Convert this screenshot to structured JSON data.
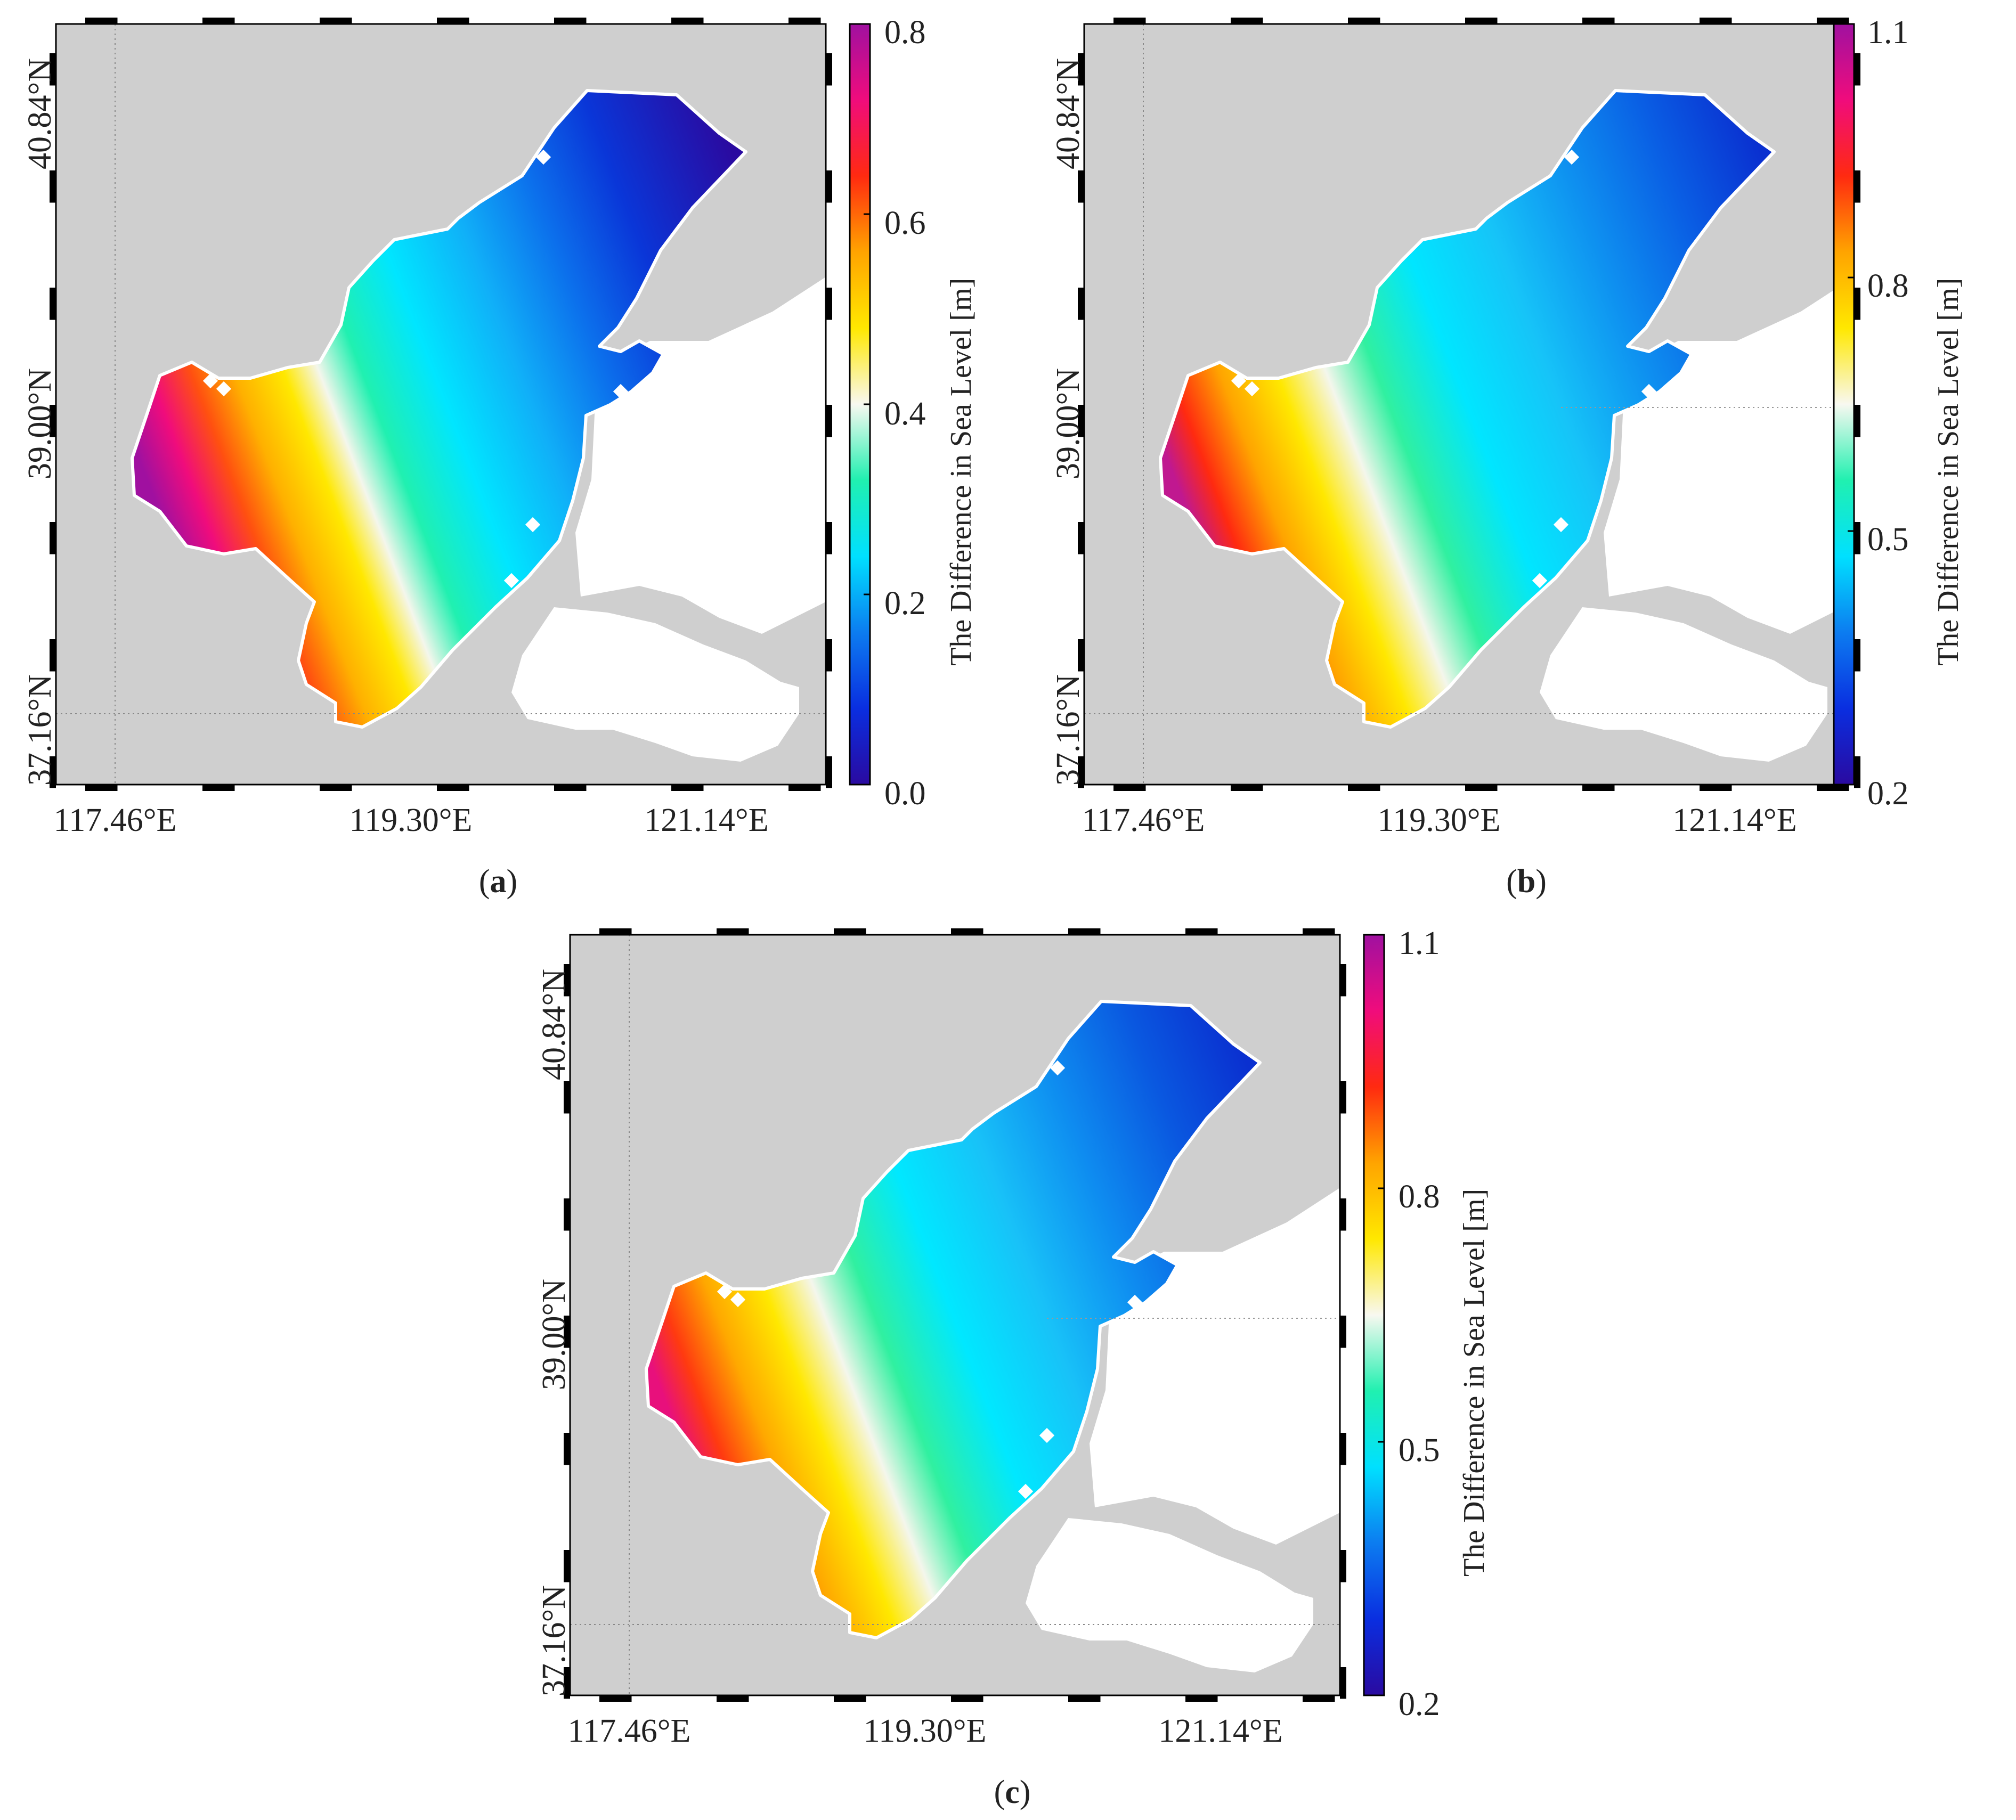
{
  "figure": {
    "panels": [
      {
        "id": "a",
        "caption_open": "(",
        "caption_letter": "a",
        "caption_close": ")",
        "colorbar": {
          "title": "The Difference in Sea Level [m]",
          "min": 0.0,
          "max": 0.8,
          "ticks": [
            "0.0",
            "0.2",
            "0.4",
            "0.6",
            "0.8"
          ]
        }
      },
      {
        "id": "b",
        "caption_open": "(",
        "caption_letter": "b",
        "caption_close": ")",
        "colorbar": {
          "title": "The Difference in Sea Level [m]",
          "min": 0.2,
          "max": 1.1,
          "ticks": [
            "0.2",
            "0.5",
            "0.8",
            "1.1"
          ]
        }
      },
      {
        "id": "c",
        "caption_open": "(",
        "caption_letter": "c",
        "caption_close": ")",
        "colorbar": {
          "title": "The Difference in Sea Level [m]",
          "min": 0.2,
          "max": 1.1,
          "ticks": [
            "0.2",
            "0.5",
            "0.8",
            "1.1"
          ]
        }
      }
    ],
    "lon_ticks": [
      "117.46°E",
      "119.30°E",
      "121.14°E"
    ],
    "lat_ticks": [
      "37.16°N",
      "39.00°N",
      "40.84°N"
    ],
    "colors": {
      "land": "#cfcfcf",
      "outside_land": "#ffffff",
      "colormap": [
        "#2a0aa0",
        "#0a2ee0",
        "#0c7cf0",
        "#00e0ff",
        "#20f0b0",
        "#f8f8f0",
        "#ffe800",
        "#ffa400",
        "#ff2a10",
        "#f00c7c",
        "#a010a0"
      ]
    }
  }
}
